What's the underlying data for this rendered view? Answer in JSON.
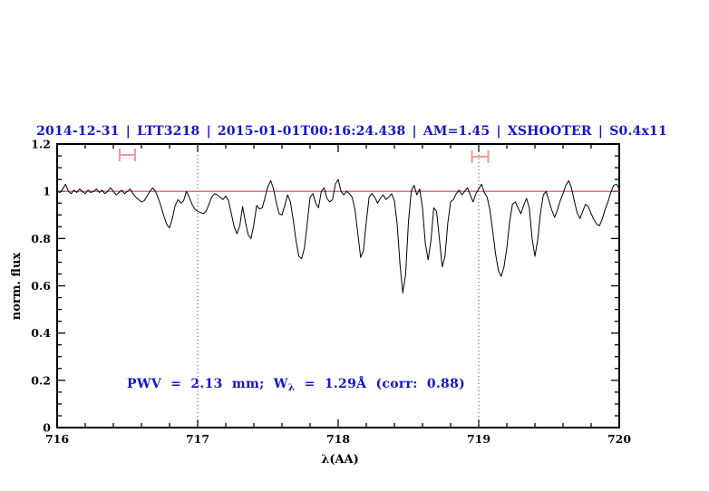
{
  "colors": {
    "text_blue": "#1414cc",
    "spectrum_black": "#000000",
    "reference_red": "#d04a4a",
    "marker_pink": "#f09a9a",
    "dotted_gray": "#444444",
    "background": "#ffffff"
  },
  "chart_data": {
    "type": "line",
    "title": "2014-12-31 | LTT3218 | 2015-01-01T00:16:24.438 | AM=1.45 | XSHOOTER | S0.4x11",
    "xlabel": "λ(AA)",
    "ylabel": "norm. flux",
    "xlim": [
      716,
      720
    ],
    "ylim": [
      0,
      1.2
    ],
    "x_ticks": [
      716,
      717,
      718,
      719,
      720
    ],
    "x_minor_step": 0.2,
    "y_ticks": {
      "values": [
        0,
        0.2,
        0.4,
        0.6,
        0.8,
        1,
        1.2
      ],
      "labels": [
        "0",
        "0.2",
        "0.4",
        "0.6",
        "0.8",
        "1",
        "1.2"
      ]
    },
    "y_minor_step": 0.05,
    "grid": "off",
    "legend": "none",
    "reference_line": {
      "y": 1.0
    },
    "dotted_vlines": [
      717,
      719
    ],
    "range_markers": [
      {
        "x_center": 716.5,
        "x_half": 0.055,
        "y": 1.154,
        "cap_half": 0.027
      },
      {
        "x_center": 719.01,
        "x_half": 0.058,
        "y": 1.147,
        "cap_half": 0.027
      }
    ],
    "annotation": {
      "prefix": "PWV = 2.13 mm; W",
      "subscript": "λ",
      "suffix": " = 1.29Å (corr: 0.88)"
    },
    "spectrum": {
      "x_start": 716.0,
      "x_step": 0.02,
      "flux": [
        1.0,
        0.995,
        1.01,
        1.03,
        1.0,
        0.99,
        1.005,
        0.995,
        1.01,
        1.0,
        0.99,
        1.005,
        0.995,
        1.0,
        1.01,
        0.995,
        1.005,
        0.99,
        1.0,
        1.015,
        1.0,
        0.985,
        0.995,
        1.005,
        0.99,
        1.0,
        1.01,
        0.99,
        0.975,
        0.965,
        0.955,
        0.96,
        0.98,
        1.0,
        1.015,
        1.0,
        0.97,
        0.935,
        0.895,
        0.86,
        0.845,
        0.885,
        0.94,
        0.965,
        0.95,
        0.96,
        1.0,
        0.975,
        0.945,
        0.925,
        0.915,
        0.91,
        0.905,
        0.915,
        0.945,
        0.975,
        0.99,
        0.985,
        0.975,
        0.965,
        0.98,
        0.96,
        0.905,
        0.85,
        0.82,
        0.855,
        0.935,
        0.87,
        0.815,
        0.8,
        0.86,
        0.94,
        0.925,
        0.93,
        0.975,
        1.02,
        1.045,
        1.01,
        0.95,
        0.905,
        0.9,
        0.94,
        0.985,
        0.955,
        0.88,
        0.79,
        0.725,
        0.715,
        0.76,
        0.865,
        0.975,
        0.99,
        0.95,
        0.93,
        1.0,
        1.015,
        0.97,
        0.955,
        0.965,
        1.03,
        1.05,
        1.0,
        0.985,
        1.0,
        0.99,
        0.975,
        0.92,
        0.82,
        0.72,
        0.75,
        0.87,
        0.975,
        0.99,
        0.975,
        0.95,
        0.97,
        0.985,
        0.965,
        0.975,
        0.99,
        0.96,
        0.86,
        0.69,
        0.57,
        0.65,
        0.87,
        1.0,
        1.025,
        0.985,
        1.01,
        0.93,
        0.78,
        0.71,
        0.79,
        0.93,
        0.915,
        0.8,
        0.68,
        0.725,
        0.865,
        0.955,
        0.965,
        0.99,
        1.005,
        0.985,
        1.0,
        1.015,
        0.985,
        0.955,
        0.99,
        1.01,
        1.03,
        0.995,
        0.975,
        0.92,
        0.83,
        0.735,
        0.665,
        0.64,
        0.68,
        0.76,
        0.87,
        0.945,
        0.955,
        0.93,
        0.905,
        0.94,
        0.97,
        0.93,
        0.8,
        0.725,
        0.795,
        0.91,
        0.985,
        1.0,
        0.96,
        0.92,
        0.89,
        0.92,
        0.96,
        0.99,
        1.025,
        1.045,
        1.015,
        0.96,
        0.91,
        0.885,
        0.915,
        0.945,
        0.935,
        0.905,
        0.88,
        0.86,
        0.855,
        0.885,
        0.925,
        0.955,
        0.995,
        1.025,
        1.03,
        1.01
      ]
    }
  }
}
